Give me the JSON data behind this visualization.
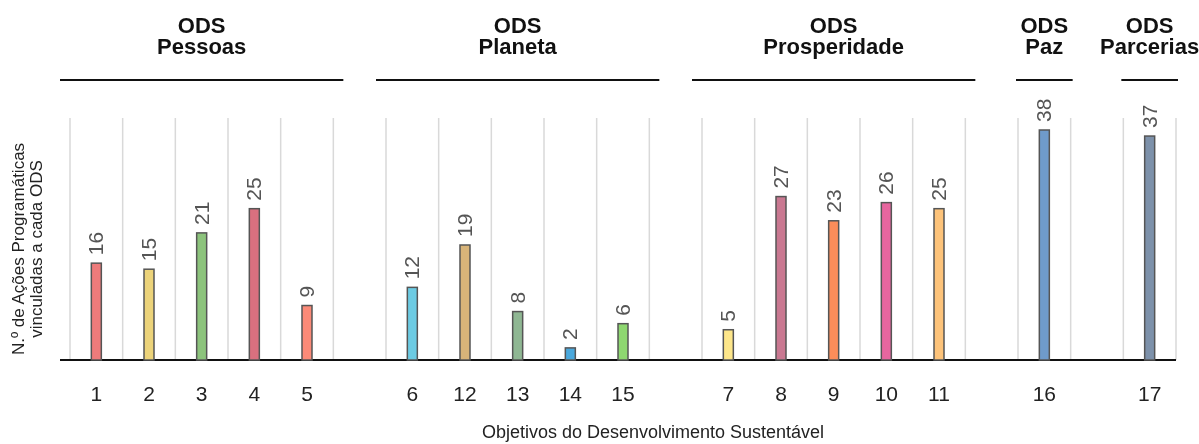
{
  "chart_data": {
    "type": "bar",
    "xlabel": "Objetivos do Desenvolvimento Sustentável",
    "ylabel": "N.º de Ações Programáticas\nvinculadas a cada ODS",
    "categories": [
      "1",
      "2",
      "3",
      "4",
      "5",
      null,
      "6",
      "12",
      "13",
      "14",
      "15",
      null,
      "7",
      "8",
      "9",
      "10",
      "11",
      null,
      "16",
      null,
      "17"
    ],
    "values": [
      16,
      15,
      21,
      25,
      9,
      null,
      12,
      19,
      8,
      2,
      6,
      null,
      5,
      27,
      23,
      26,
      25,
      null,
      38,
      null,
      37
    ],
    "colors": [
      "#ee7b7b",
      "#ecd37a",
      "#8cc37c",
      "#d9707f",
      "#fb8a78",
      null,
      "#6ccbe3",
      "#d8b479",
      "#8fb793",
      "#4aa8dc",
      "#8ed770",
      null,
      "#fde68a",
      "#c97891",
      "#fb8d5a",
      "#e7669f",
      "#fdc37a",
      null,
      "#6f9bcb",
      null,
      "#7d91aa"
    ],
    "annotations": [
      "ODS\nPessoas",
      "ODS\nPlaneta",
      "ODS\nProsperidade",
      "ODS\nPaz",
      "ODS\nParcerias"
    ],
    "data_labels": true,
    "grid": "x"
  }
}
